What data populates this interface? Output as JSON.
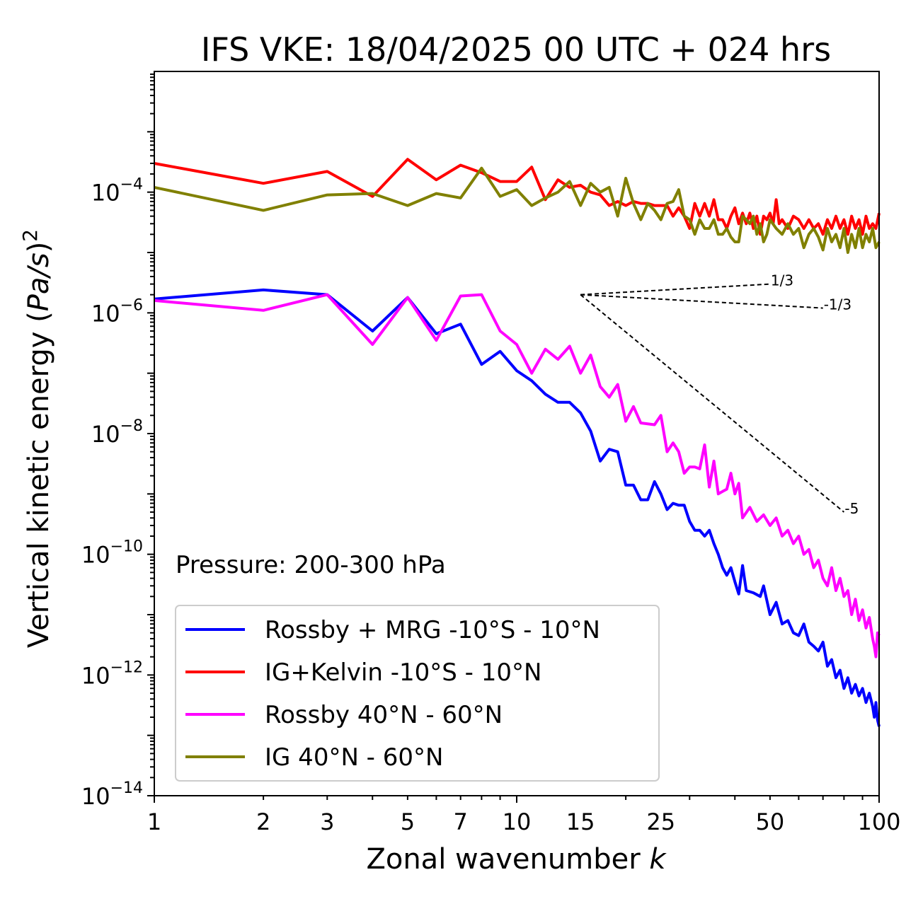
{
  "chart_data": {
    "type": "line",
    "title": "IFS VKE: 18/04/2025 00 UTC + 024 hrs",
    "xlabel_text": "Zonal wavenumber ",
    "xlabel_var": "k",
    "ylabel_prefix": "Vertical kinetic energy (",
    "ylabel_var": "Pa/s",
    "ylabel_suffix": ")",
    "ylabel_exp": "2",
    "x_scale": "log",
    "y_scale": "log",
    "xlim": [
      1,
      100
    ],
    "ylim": [
      1e-14,
      0.01
    ],
    "x_ticks": [
      1,
      2,
      3,
      5,
      7,
      10,
      15,
      25,
      50,
      100
    ],
    "x_tick_labels": [
      "1",
      "2",
      "3",
      "5",
      "7",
      "10",
      "15",
      "25",
      "50",
      "100"
    ],
    "y_ticks": [
      1e-14,
      1e-12,
      1e-10,
      1e-08,
      1e-06,
      0.0001
    ],
    "y_tick_base": "10",
    "y_tick_exponents": [
      "−14",
      "−12",
      "−10",
      "−8",
      "−6",
      "−4"
    ],
    "grid": false,
    "annotation": "Pressure: 200-300 hPa",
    "legend_position": "lower-left",
    "series": [
      {
        "name": "Rossby + MRG -10°S - 10°N",
        "color": "#0000ff",
        "points": [
          [
            1,
            1.7e-06
          ],
          [
            2,
            2.4e-06
          ],
          [
            3,
            2e-06
          ],
          [
            4,
            5e-07
          ],
          [
            5,
            1.8e-06
          ],
          [
            6,
            4.5e-07
          ],
          [
            7,
            6.5e-07
          ],
          [
            8,
            1.4e-07
          ],
          [
            9,
            2.3e-07
          ],
          [
            10,
            1.1e-07
          ],
          [
            11,
            7.5e-08
          ],
          [
            12,
            4.5e-08
          ],
          [
            13,
            3.3e-08
          ],
          [
            14,
            3.3e-08
          ],
          [
            15,
            2.2e-08
          ],
          [
            16,
            1.1e-08
          ],
          [
            17,
            3.5e-09
          ],
          [
            18,
            5.5e-09
          ],
          [
            19,
            5e-09
          ],
          [
            20,
            1.4e-09
          ],
          [
            21,
            1.4e-09
          ],
          [
            22,
            8e-10
          ],
          [
            23,
            8e-10
          ],
          [
            24,
            1.6e-09
          ],
          [
            25,
            1e-09
          ],
          [
            26,
            5.5e-10
          ],
          [
            27,
            7e-10
          ],
          [
            28,
            6.5e-10
          ],
          [
            29,
            6.5e-10
          ],
          [
            30,
            3.5e-10
          ],
          [
            31,
            2.5e-10
          ],
          [
            32,
            2.5e-10
          ],
          [
            33,
            2e-10
          ],
          [
            34,
            2.5e-10
          ],
          [
            35,
            1.5e-10
          ],
          [
            36,
            1e-10
          ],
          [
            37,
            6e-11
          ],
          [
            38,
            4.5e-11
          ],
          [
            39,
            6e-11
          ],
          [
            40,
            3.5e-11
          ],
          [
            41,
            2.2e-11
          ],
          [
            42,
            6.5e-11
          ],
          [
            43,
            2.5e-11
          ],
          [
            45,
            2.3e-11
          ],
          [
            47,
            2e-11
          ],
          [
            48,
            3e-11
          ],
          [
            50,
            1e-11
          ],
          [
            52,
            1.6e-11
          ],
          [
            54,
            7e-12
          ],
          [
            56,
            8e-12
          ],
          [
            58,
            5e-12
          ],
          [
            60,
            4.5e-12
          ],
          [
            62,
            7e-12
          ],
          [
            64,
            3.5e-12
          ],
          [
            66,
            3e-12
          ],
          [
            68,
            2.5e-12
          ],
          [
            70,
            3.5e-12
          ],
          [
            72,
            1.4e-12
          ],
          [
            74,
            1.8e-12
          ],
          [
            76,
            9e-13
          ],
          [
            78,
            1.2e-12
          ],
          [
            80,
            6e-13
          ],
          [
            82,
            9e-13
          ],
          [
            84,
            5e-13
          ],
          [
            86,
            7e-13
          ],
          [
            88,
            4.5e-13
          ],
          [
            90,
            6e-13
          ],
          [
            92,
            3.5e-13
          ],
          [
            94,
            5e-13
          ],
          [
            96,
            3e-13
          ],
          [
            97,
            2e-13
          ],
          [
            98,
            3.5e-13
          ],
          [
            99,
            1.8e-13
          ],
          [
            100,
            1.4e-13
          ]
        ]
      },
      {
        "name": "IG+Kelvin -10°S - 10°N",
        "color": "#ff0000",
        "points": [
          [
            1,
            0.0003
          ],
          [
            2,
            0.00014
          ],
          [
            3,
            0.00022
          ],
          [
            4,
            8.5e-05
          ],
          [
            5,
            0.00035
          ],
          [
            6,
            0.00016
          ],
          [
            7,
            0.00028
          ],
          [
            8,
            0.00021
          ],
          [
            9,
            0.00015
          ],
          [
            10,
            0.00015
          ],
          [
            11,
            0.00026
          ],
          [
            12,
            7.5e-05
          ],
          [
            13,
            0.00016
          ],
          [
            14,
            0.00012
          ],
          [
            15,
            0.00013
          ],
          [
            16,
            0.0001
          ],
          [
            17,
            9e-05
          ],
          [
            18,
            6e-05
          ],
          [
            19,
            7e-05
          ],
          [
            20,
            6e-05
          ],
          [
            21,
            7e-05
          ],
          [
            22,
            6.5e-05
          ],
          [
            23,
            6.5e-05
          ],
          [
            24,
            6e-05
          ],
          [
            25,
            6e-05
          ],
          [
            26,
            6e-05
          ],
          [
            27,
            4e-05
          ],
          [
            28,
            5.5e-05
          ],
          [
            29,
            4e-05
          ],
          [
            30,
            2.5e-05
          ],
          [
            31,
            6.5e-05
          ],
          [
            32,
            4e-05
          ],
          [
            33,
            6.5e-05
          ],
          [
            34,
            4e-05
          ],
          [
            35,
            7.5e-05
          ],
          [
            36,
            3.5e-05
          ],
          [
            37,
            3.5e-05
          ],
          [
            38,
            2.5e-05
          ],
          [
            39,
            4e-05
          ],
          [
            40,
            5.5e-05
          ],
          [
            41,
            3e-05
          ],
          [
            42,
            4.5e-05
          ],
          [
            43,
            3e-05
          ],
          [
            44,
            4.5e-05
          ],
          [
            45,
            2.5e-05
          ],
          [
            46,
            4e-05
          ],
          [
            47,
            2e-05
          ],
          [
            48,
            4e-05
          ],
          [
            49,
            3.5e-05
          ],
          [
            50,
            4.5e-05
          ],
          [
            51,
            3e-05
          ],
          [
            52,
            7.5e-05
          ],
          [
            53,
            3e-05
          ],
          [
            54,
            3.5e-05
          ],
          [
            56,
            2.5e-05
          ],
          [
            58,
            4e-05
          ],
          [
            60,
            3.5e-05
          ],
          [
            62,
            2.5e-05
          ],
          [
            64,
            3.5e-05
          ],
          [
            66,
            2.5e-05
          ],
          [
            68,
            3e-05
          ],
          [
            70,
            2e-05
          ],
          [
            72,
            3.5e-05
          ],
          [
            74,
            2.5e-05
          ],
          [
            76,
            4e-05
          ],
          [
            78,
            2.5e-05
          ],
          [
            80,
            3.5e-05
          ],
          [
            82,
            2e-05
          ],
          [
            84,
            4e-05
          ],
          [
            86,
            2.5e-05
          ],
          [
            88,
            3.5e-05
          ],
          [
            90,
            2e-05
          ],
          [
            92,
            4e-05
          ],
          [
            94,
            2.5e-05
          ],
          [
            96,
            3e-05
          ],
          [
            98,
            2.5e-05
          ],
          [
            100,
            4.5e-05
          ]
        ]
      },
      {
        "name": "Rossby 40°N - 60°N",
        "color": "#ff00ff",
        "points": [
          [
            1,
            1.6e-06
          ],
          [
            2,
            1.1e-06
          ],
          [
            3,
            2e-06
          ],
          [
            4,
            3e-07
          ],
          [
            5,
            1.8e-06
          ],
          [
            6,
            3.5e-07
          ],
          [
            7,
            1.9e-06
          ],
          [
            8,
            2e-06
          ],
          [
            9,
            5e-07
          ],
          [
            10,
            3e-07
          ],
          [
            11,
            1e-07
          ],
          [
            12,
            2.5e-07
          ],
          [
            13,
            1.7e-07
          ],
          [
            14,
            2.8e-07
          ],
          [
            15,
            1e-07
          ],
          [
            16,
            2e-07
          ],
          [
            17,
            6e-08
          ],
          [
            18,
            4e-08
          ],
          [
            19,
            6.5e-08
          ],
          [
            20,
            1.6e-08
          ],
          [
            21,
            2.8e-08
          ],
          [
            22,
            1.5e-08
          ],
          [
            24,
            1.4e-08
          ],
          [
            25,
            2e-08
          ],
          [
            26,
            5e-09
          ],
          [
            27,
            7e-09
          ],
          [
            28,
            5e-09
          ],
          [
            29,
            2.2e-09
          ],
          [
            30,
            2.8e-09
          ],
          [
            31,
            2.8e-09
          ],
          [
            32,
            2.6e-09
          ],
          [
            33,
            6.5e-09
          ],
          [
            34,
            1.3e-09
          ],
          [
            35,
            3.5e-09
          ],
          [
            36,
            1e-09
          ],
          [
            37,
            1.1e-09
          ],
          [
            38,
            1.2e-09
          ],
          [
            39,
            2.2e-09
          ],
          [
            40,
            1e-09
          ],
          [
            41,
            1.5e-09
          ],
          [
            42,
            4e-10
          ],
          [
            44,
            6e-10
          ],
          [
            46,
            3.5e-10
          ],
          [
            48,
            4.5e-10
          ],
          [
            50,
            3e-10
          ],
          [
            52,
            4e-10
          ],
          [
            54,
            2e-10
          ],
          [
            56,
            2.5e-10
          ],
          [
            58,
            1.5e-10
          ],
          [
            60,
            2e-10
          ],
          [
            62,
            1e-10
          ],
          [
            64,
            1.2e-10
          ],
          [
            66,
            6e-11
          ],
          [
            68,
            8e-11
          ],
          [
            70,
            4e-11
          ],
          [
            72,
            3e-11
          ],
          [
            74,
            6e-11
          ],
          [
            76,
            2.5e-11
          ],
          [
            78,
            4e-11
          ],
          [
            80,
            2e-11
          ],
          [
            82,
            2.5e-11
          ],
          [
            84,
            1e-11
          ],
          [
            86,
            1.8e-11
          ],
          [
            88,
            8e-12
          ],
          [
            90,
            1.2e-11
          ],
          [
            92,
            6e-12
          ],
          [
            94,
            9e-12
          ],
          [
            96,
            4e-12
          ],
          [
            97,
            3e-12
          ],
          [
            98,
            2e-12
          ],
          [
            99,
            5e-12
          ],
          [
            100,
            4.5e-12
          ]
        ]
      },
      {
        "name": "IG 40°N - 60°N",
        "color": "#808000",
        "points": [
          [
            1,
            0.00012
          ],
          [
            2,
            5e-05
          ],
          [
            3,
            9e-05
          ],
          [
            4,
            9.5e-05
          ],
          [
            5,
            6e-05
          ],
          [
            6,
            9.5e-05
          ],
          [
            7,
            8e-05
          ],
          [
            8,
            0.00025
          ],
          [
            9,
            8.5e-05
          ],
          [
            10,
            0.00011
          ],
          [
            11,
            6e-05
          ],
          [
            12,
            8e-05
          ],
          [
            13,
            0.0001
          ],
          [
            14,
            0.00015
          ],
          [
            15,
            6e-05
          ],
          [
            16,
            0.00014
          ],
          [
            17,
            0.0001
          ],
          [
            18,
            0.00012
          ],
          [
            19,
            4e-05
          ],
          [
            20,
            0.00017
          ],
          [
            21,
            6.5e-05
          ],
          [
            22,
            3.5e-05
          ],
          [
            23,
            6.5e-05
          ],
          [
            24,
            5e-05
          ],
          [
            25,
            3.5e-05
          ],
          [
            26,
            6.5e-05
          ],
          [
            27,
            7e-05
          ],
          [
            28,
            0.00011
          ],
          [
            29,
            4e-05
          ],
          [
            30,
            3.5e-05
          ],
          [
            31,
            2e-05
          ],
          [
            32,
            3.5e-05
          ],
          [
            33,
            2.5e-05
          ],
          [
            34,
            2.5e-05
          ],
          [
            35,
            3.5e-05
          ],
          [
            36,
            2e-05
          ],
          [
            37,
            2e-05
          ],
          [
            38,
            2.5e-05
          ],
          [
            39,
            1.8e-05
          ],
          [
            40,
            1.5e-05
          ],
          [
            41,
            1.5e-05
          ],
          [
            42,
            4e-05
          ],
          [
            43,
            3.5e-05
          ],
          [
            44,
            3e-05
          ],
          [
            45,
            4e-05
          ],
          [
            46,
            2e-05
          ],
          [
            47,
            3e-05
          ],
          [
            48,
            1.5e-05
          ],
          [
            49,
            2e-05
          ],
          [
            50,
            3.5e-05
          ],
          [
            52,
            2.5e-05
          ],
          [
            54,
            2e-05
          ],
          [
            56,
            3e-05
          ],
          [
            58,
            2e-05
          ],
          [
            60,
            2.5e-05
          ],
          [
            62,
            1.2e-05
          ],
          [
            64,
            2e-05
          ],
          [
            66,
            2.5e-05
          ],
          [
            68,
            1.8e-05
          ],
          [
            70,
            1.1e-05
          ],
          [
            72,
            2.5e-05
          ],
          [
            74,
            1.5e-05
          ],
          [
            76,
            2e-05
          ],
          [
            78,
            1.2e-05
          ],
          [
            80,
            2.5e-05
          ],
          [
            82,
            1e-05
          ],
          [
            84,
            2e-05
          ],
          [
            86,
            1.2e-05
          ],
          [
            88,
            2.5e-05
          ],
          [
            90,
            1.2e-05
          ],
          [
            92,
            2e-05
          ],
          [
            94,
            1.5e-05
          ],
          [
            96,
            2.5e-05
          ],
          [
            98,
            1.2e-05
          ],
          [
            100,
            1.5e-05
          ]
        ]
      }
    ],
    "reference_lines": [
      {
        "label": "1/3",
        "from": [
          15,
          2e-06
        ],
        "to": [
          50,
          3e-06
        ]
      },
      {
        "label": "-1/3",
        "from": [
          15,
          2e-06
        ],
        "to": [
          70,
          1.2e-06
        ]
      },
      {
        "label": "-5",
        "from": [
          15,
          2e-06
        ],
        "to": [
          80,
          5e-10
        ]
      }
    ]
  }
}
